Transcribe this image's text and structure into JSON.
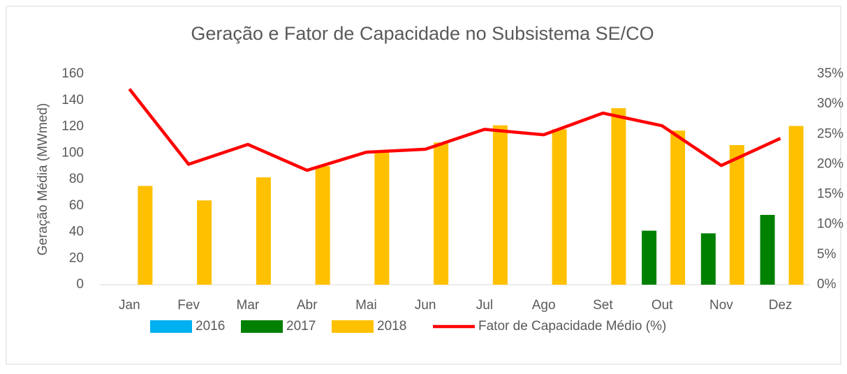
{
  "chart_data": {
    "type": "bar",
    "title": "Geração e Fator de Capacidade no Subsistema SE/CO",
    "ylabel": "Geração Média (MWmed)",
    "categories": [
      "Jan",
      "Fev",
      "Mar",
      "Abr",
      "Mai",
      "Jun",
      "Jul",
      "Ago",
      "Set",
      "Out",
      "Nov",
      "Dez"
    ],
    "series": [
      {
        "name": "2016",
        "color": "#00b0f0",
        "values": [
          null,
          null,
          null,
          null,
          null,
          null,
          null,
          null,
          null,
          null,
          null,
          null
        ]
      },
      {
        "name": "2017",
        "color": "#008000",
        "values": [
          null,
          null,
          null,
          null,
          null,
          null,
          null,
          null,
          null,
          41,
          39,
          53
        ]
      },
      {
        "name": "2018",
        "color": "#ffc000",
        "values": [
          75,
          64,
          81.5,
          90,
          102,
          108,
          121,
          118,
          134,
          117,
          106,
          120.5
        ]
      },
      {
        "name": "Fator de Capacidade Médio (%)",
        "color": "#ff0000",
        "type": "line",
        "axis": "y2",
        "values": [
          32.5,
          20,
          23.3,
          19,
          22,
          22.5,
          25.8,
          24.9,
          28.5,
          26.4,
          19.8,
          24.3
        ]
      }
    ],
    "ylim": [
      0,
      160
    ],
    "yticks": [
      0,
      20,
      40,
      60,
      80,
      100,
      120,
      140,
      160
    ],
    "y2lim": [
      0,
      35
    ],
    "y2ticks": [
      {
        "value": 0,
        "label": "0%"
      },
      {
        "value": 5,
        "label": "5%"
      },
      {
        "value": 10,
        "label": "10%"
      },
      {
        "value": 15,
        "label": "15%"
      },
      {
        "value": 20,
        "label": "20%"
      },
      {
        "value": 25,
        "label": "25%"
      },
      {
        "value": 30,
        "label": "30%"
      },
      {
        "value": 35,
        "label": "35%"
      }
    ],
    "grid": false,
    "legend": "bottom"
  }
}
